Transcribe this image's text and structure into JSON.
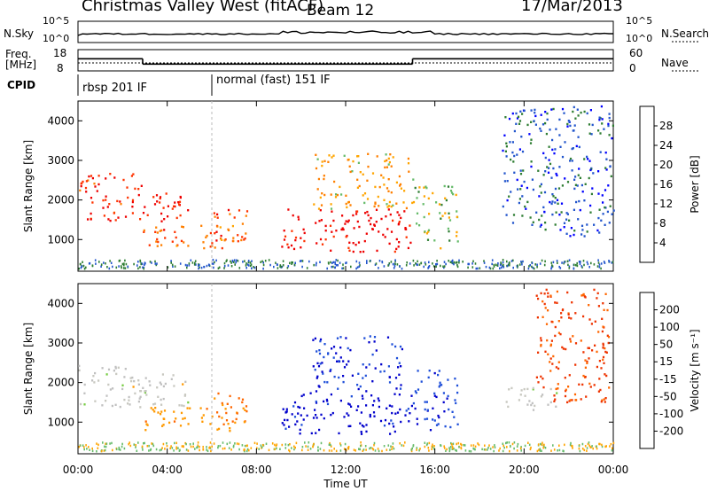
{
  "header": {
    "title": "Christmas Valley West (fitACF)",
    "beam": "Beam 12",
    "date": "17/Mar/2013"
  },
  "panels": {
    "nsky": {
      "left_label": "N.Sky",
      "right_label": "N.Search",
      "left_ticks": [
        "10^5",
        "10^0"
      ],
      "right_ticks": [
        "10^5",
        "10^0"
      ]
    },
    "freq": {
      "left_label_1": "Freq.",
      "left_label_2": "[MHz]",
      "right_label": "Nave",
      "left_ticks": [
        "18",
        "8"
      ],
      "right_ticks": [
        "60",
        "0"
      ]
    },
    "cpid": {
      "label": "CPID",
      "segments": [
        "rbsp 201 IF",
        "normal (fast) 151 IF"
      ]
    }
  },
  "colors": {
    "power": [
      "#0000ff",
      "#2255cc",
      "#2e7d32",
      "#66bb6a",
      "#ffa500",
      "#ff7f00",
      "#ff3300",
      "#ee0000"
    ],
    "velocity": [
      "#0000cc",
      "#1f4fd9",
      "#228b22",
      "#77cc44",
      "#c8c8c0",
      "#ff9900",
      "#ff6600",
      "#ee3300",
      "#ee0000"
    ],
    "ground_scatter": "#c0c0c0"
  },
  "chart_data": [
    {
      "type": "heatmap",
      "panel": "power",
      "ylabel": "Slant Range [km]",
      "xlabel": "Time UT",
      "x_ticks": [
        "00:00",
        "04:00",
        "08:00",
        "12:00",
        "16:00",
        "20:00",
        "00:00"
      ],
      "y_ticks": [
        "1000",
        "2000",
        "3000",
        "4000"
      ],
      "ylim": [
        200,
        4500
      ],
      "colorbar_label": "Power [dB]",
      "colorbar_ticks": [
        "4",
        "8",
        "12",
        "16",
        "20",
        "24",
        "28"
      ],
      "colorbar_range": [
        0,
        30
      ],
      "regions": [
        {
          "t": [
            0.0,
            2.9
          ],
          "r": [
            1500,
            2700
          ],
          "value": 26
        },
        {
          "t": [
            2.9,
            4.9
          ],
          "r": [
            1200,
            2200
          ],
          "value": 26
        },
        {
          "t": [
            2.9,
            7.5
          ],
          "r": [
            800,
            1400
          ],
          "value": 22
        },
        {
          "t": [
            6.0,
            7.6
          ],
          "r": [
            1000,
            1800
          ],
          "value": 24
        },
        {
          "t": [
            9.1,
            15.0
          ],
          "r": [
            700,
            1800
          ],
          "value": 29
        },
        {
          "t": [
            10.5,
            15.0
          ],
          "r": [
            1800,
            3200
          ],
          "value": 18
        },
        {
          "t": [
            15.0,
            17.0
          ],
          "r": [
            800,
            2400
          ],
          "value": 14
        },
        {
          "t": [
            19.0,
            24.0
          ],
          "r": [
            1100,
            4400
          ],
          "value": 6
        }
      ]
    },
    {
      "type": "heatmap",
      "panel": "velocity",
      "ylabel": "Slant Range [km]",
      "xlabel": "Time UT",
      "x_ticks": [
        "00:00",
        "04:00",
        "08:00",
        "12:00",
        "16:00",
        "20:00",
        "00:00"
      ],
      "y_ticks": [
        "1000",
        "2000",
        "3000",
        "4000"
      ],
      "ylim": [
        200,
        4500
      ],
      "colorbar_label": "Velocity [m s⁻¹]",
      "colorbar_ticks": [
        "200",
        "100",
        "50",
        "15",
        "-15",
        "-50",
        "-100",
        "-200"
      ],
      "colorbar_range": [
        -250,
        250
      ],
      "regions": [
        {
          "t": [
            0.0,
            2.9
          ],
          "r": [
            1400,
            2500
          ],
          "value": 0
        },
        {
          "t": [
            2.9,
            4.9
          ],
          "r": [
            1400,
            2300
          ],
          "value": 0
        },
        {
          "t": [
            2.9,
            7.5
          ],
          "r": [
            800,
            1400
          ],
          "value": -60
        },
        {
          "t": [
            6.0,
            7.6
          ],
          "r": [
            1000,
            1800
          ],
          "value": -110
        },
        {
          "t": [
            9.1,
            15.0
          ],
          "r": [
            700,
            1800
          ],
          "value": 220
        },
        {
          "t": [
            10.5,
            14.5
          ],
          "r": [
            1800,
            3200
          ],
          "value": 200
        },
        {
          "t": [
            15.0,
            17.0
          ],
          "r": [
            800,
            2400
          ],
          "value": 180
        },
        {
          "t": [
            19.0,
            21.5
          ],
          "r": [
            1300,
            1900
          ],
          "value": 0
        },
        {
          "t": [
            20.5,
            23.8
          ],
          "r": [
            1500,
            4400
          ],
          "value": -150
        }
      ]
    }
  ],
  "timeseries": {
    "freq_segments": [
      {
        "t": [
          0.0,
          2.9
        ],
        "mhz": 14
      },
      {
        "t": [
          2.9,
          15.0
        ],
        "mhz": 10.5
      },
      {
        "t": [
          15.0,
          24.0
        ],
        "mhz": 14
      }
    ],
    "nave_level": 14,
    "cpid_changes": [
      0.0,
      6.0
    ]
  }
}
